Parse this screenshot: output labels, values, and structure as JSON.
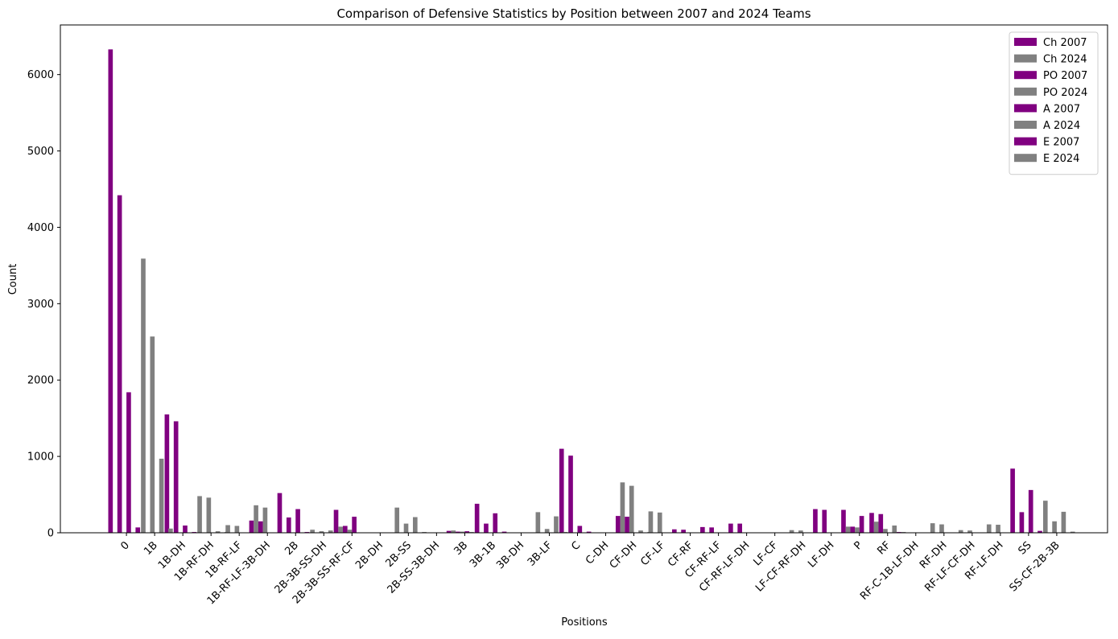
{
  "chart_data": {
    "type": "bar",
    "title": "Comparison of Defensive Statistics by Position between 2007 and 2024 Teams",
    "xlabel": "Positions",
    "ylabel": "Count",
    "ylim": [
      0,
      6650
    ],
    "yticks": [
      0,
      1000,
      2000,
      3000,
      4000,
      5000,
      6000
    ],
    "grid": false,
    "legend_position": "top-right",
    "categories": [
      "0",
      "1B",
      "1B-DH",
      "1B-RF-DH",
      "1B-RF-LF",
      "1B-RF-LF-3B-DH",
      "2B",
      "2B-3B-SS-DH",
      "2B-3B-SS-RF-CF",
      "2B-DH",
      "2B-SS",
      "2B-SS-3B-DH",
      "3B",
      "3B-1B",
      "3B-DH",
      "3B-LF",
      "C",
      "C-DH",
      "CF-DH",
      "CF-LF",
      "CF-RF",
      "CF-RF-LF",
      "CF-RF-LF-DH",
      "LF-CF",
      "LF-CF-RF-DH",
      "LF-DH",
      "P",
      "RF",
      "RF-C-1B-LF-DH",
      "RF-DH",
      "RF-LF-CF-DH",
      "RF-LF-DH",
      "SS",
      "SS-CF-2B-3B"
    ],
    "series": [
      {
        "name": "Ch 2007",
        "color": "#800080",
        "values": [
          6330,
          0,
          1550,
          0,
          0,
          160,
          520,
          0,
          300,
          0,
          0,
          0,
          25,
          380,
          0,
          0,
          1100,
          0,
          220,
          0,
          45,
          75,
          120,
          0,
          0,
          310,
          300,
          260,
          0,
          0,
          0,
          0,
          840,
          0
        ]
      },
      {
        "name": "Ch 2024",
        "color": "#808080",
        "values": [
          0,
          3590,
          0,
          480,
          100,
          360,
          0,
          40,
          80,
          0,
          330,
          0,
          30,
          0,
          0,
          270,
          0,
          0,
          660,
          280,
          0,
          0,
          0,
          0,
          35,
          0,
          80,
          145,
          0,
          125,
          35,
          110,
          0,
          420
        ]
      },
      {
        "name": "PO 2007",
        "color": "#800080",
        "values": [
          4420,
          0,
          1460,
          0,
          0,
          150,
          200,
          0,
          90,
          0,
          0,
          0,
          15,
          120,
          0,
          0,
          1010,
          0,
          210,
          0,
          40,
          70,
          120,
          0,
          0,
          300,
          80,
          245,
          0,
          0,
          0,
          0,
          270,
          0
        ]
      },
      {
        "name": "PO 2024",
        "color": "#808080",
        "values": [
          0,
          2570,
          0,
          460,
          90,
          330,
          0,
          20,
          40,
          0,
          120,
          0,
          15,
          0,
          0,
          50,
          0,
          0,
          615,
          265,
          0,
          0,
          0,
          0,
          30,
          0,
          70,
          50,
          0,
          110,
          30,
          105,
          0,
          150
        ]
      },
      {
        "name": "A 2007",
        "color": "#800080",
        "values": [
          1840,
          0,
          95,
          0,
          0,
          0,
          310,
          0,
          210,
          0,
          0,
          0,
          20,
          255,
          0,
          0,
          90,
          0,
          0,
          0,
          0,
          0,
          0,
          0,
          0,
          0,
          220,
          0,
          0,
          0,
          0,
          0,
          560,
          0
        ]
      },
      {
        "name": "A 2024",
        "color": "#808080",
        "values": [
          0,
          970,
          0,
          20,
          0,
          0,
          0,
          30,
          0,
          0,
          205,
          0,
          10,
          0,
          0,
          215,
          0,
          0,
          30,
          0,
          0,
          0,
          0,
          0,
          0,
          0,
          0,
          95,
          0,
          0,
          0,
          0,
          0,
          275
        ]
      },
      {
        "name": "E 2007",
        "color": "#800080",
        "values": [
          70,
          0,
          10,
          0,
          0,
          5,
          10,
          0,
          5,
          0,
          0,
          0,
          5,
          15,
          0,
          0,
          15,
          0,
          5,
          0,
          0,
          0,
          0,
          0,
          0,
          5,
          5,
          10,
          0,
          0,
          0,
          0,
          25,
          0
        ]
      },
      {
        "name": "E 2024",
        "color": "#808080",
        "values": [
          0,
          55,
          0,
          10,
          0,
          5,
          0,
          5,
          0,
          0,
          10,
          0,
          5,
          0,
          0,
          10,
          0,
          0,
          10,
          5,
          0,
          0,
          0,
          0,
          0,
          0,
          5,
          10,
          0,
          5,
          5,
          5,
          0,
          15
        ]
      }
    ]
  }
}
